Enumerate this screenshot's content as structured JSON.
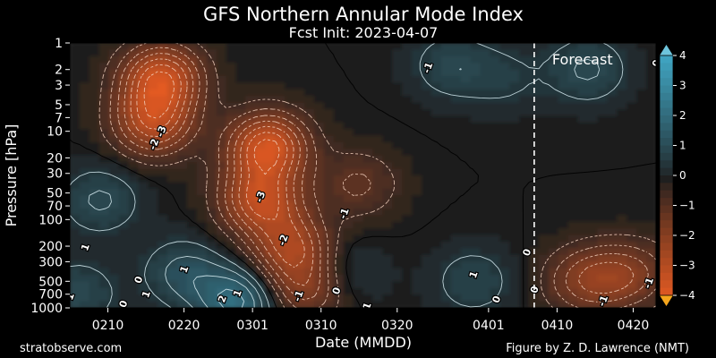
{
  "chart_data": {
    "type": "heatmap",
    "title": "GFS Northern Annular Mode Index",
    "subtitle": "Fcst Init: 2023-04-07",
    "xlabel": "Date (MMDD)",
    "ylabel": "Pressure [hPa]",
    "y_scale": "log",
    "y_inverted": true,
    "ylim": [
      1000,
      1
    ],
    "xlim": [
      "2023-02-05",
      "2023-04-23"
    ],
    "x_ticks": [
      {
        "date": "2023-02-10",
        "label": "0210"
      },
      {
        "date": "2023-02-20",
        "label": "0220"
      },
      {
        "date": "2023-03-01",
        "label": "0301"
      },
      {
        "date": "2023-03-10",
        "label": "0310"
      },
      {
        "date": "2023-03-20",
        "label": "0320"
      },
      {
        "date": "2023-04-01",
        "label": "0401"
      },
      {
        "date": "2023-04-10",
        "label": "0410"
      },
      {
        "date": "2023-04-20",
        "label": "0420"
      }
    ],
    "y_ticks": [
      1,
      2,
      3,
      5,
      7,
      10,
      20,
      30,
      50,
      70,
      100,
      200,
      300,
      500,
      700,
      1000
    ],
    "colorbar": {
      "min": -4,
      "max": 4,
      "ticks": [
        4,
        3,
        2,
        1,
        0,
        -1,
        -2,
        -3,
        -4
      ],
      "colors": {
        "neg": "#e35a22",
        "zero": "#1f1f1f",
        "pos": "#3fa2bf",
        "min_cap": "#f4a51c",
        "max_cap": "#6ec4dc"
      }
    },
    "forecast_start": "2023-04-07",
    "forecast_label": "Forecast",
    "features": [
      {
        "date": "2023-02-17",
        "hpa": 2.5,
        "value": -3.4
      },
      {
        "date": "2023-02-16",
        "hpa": 8,
        "value": -2.8
      },
      {
        "date": "2023-03-03",
        "hpa": 15,
        "value": -3.6
      },
      {
        "date": "2023-03-02",
        "hpa": 60,
        "value": -3.0
      },
      {
        "date": "2023-03-06",
        "hpa": 200,
        "value": -2.4
      },
      {
        "date": "2023-03-08",
        "hpa": 600,
        "value": -1.8
      },
      {
        "date": "2023-03-15",
        "hpa": 40,
        "value": -1.1
      },
      {
        "date": "2023-02-09",
        "hpa": 60,
        "value": 1.1
      },
      {
        "date": "2023-02-20",
        "hpa": 400,
        "value": 1.2
      },
      {
        "date": "2023-02-27",
        "hpa": 850,
        "value": 2.2
      },
      {
        "date": "2023-03-27",
        "hpa": 1.8,
        "value": 0.9
      },
      {
        "date": "2023-04-03",
        "hpa": 2.5,
        "value": 0.6
      },
      {
        "date": "2023-04-14",
        "hpa": 2.0,
        "value": 1.1
      },
      {
        "date": "2023-03-30",
        "hpa": 500,
        "value": 0.9
      },
      {
        "date": "2023-03-13",
        "hpa": 400,
        "value": 0.7
      },
      {
        "date": "2023-02-06",
        "hpa": 700,
        "value": 1.0
      },
      {
        "date": "2023-04-13",
        "hpa": 500,
        "value": -1.3
      },
      {
        "date": "2023-04-17",
        "hpa": 450,
        "value": -1.2
      },
      {
        "date": "2023-04-21",
        "hpa": 400,
        "value": -1.0
      }
    ],
    "contour_labels": [
      {
        "date": "2023-02-17",
        "hpa": 10,
        "text": "-3"
      },
      {
        "date": "2023-02-16",
        "hpa": 14,
        "text": "-2"
      },
      {
        "date": "2023-03-02",
        "hpa": 55,
        "text": "-3"
      },
      {
        "date": "2023-03-05",
        "hpa": 170,
        "text": "-2"
      },
      {
        "date": "2023-03-07",
        "hpa": 730,
        "text": "-1"
      },
      {
        "date": "2023-03-13",
        "hpa": 85,
        "text": "-1"
      },
      {
        "date": "2023-03-24",
        "hpa": 1.9,
        "text": "-1"
      },
      {
        "date": "2023-02-07",
        "hpa": 205,
        "text": "1"
      },
      {
        "date": "2023-02-14",
        "hpa": 480,
        "text": "0"
      },
      {
        "date": "2023-02-15",
        "hpa": 700,
        "text": "1"
      },
      {
        "date": "2023-02-20",
        "hpa": 365,
        "text": "1"
      },
      {
        "date": "2023-02-27",
        "hpa": 680,
        "text": "1"
      },
      {
        "date": "2023-02-25",
        "hpa": 790,
        "text": "2"
      },
      {
        "date": "2023-02-05",
        "hpa": 740,
        "text": "1"
      },
      {
        "date": "2023-02-12",
        "hpa": 900,
        "text": "0"
      },
      {
        "date": "2023-03-12",
        "hpa": 640,
        "text": "0"
      },
      {
        "date": "2023-03-16",
        "hpa": 950,
        "text": "1"
      },
      {
        "date": "2023-03-30",
        "hpa": 420,
        "text": "1"
      },
      {
        "date": "2023-04-02",
        "hpa": 800,
        "text": "0"
      },
      {
        "date": "2023-04-06",
        "hpa": 235,
        "text": "0"
      },
      {
        "date": "2023-04-07",
        "hpa": 620,
        "text": "0"
      },
      {
        "date": "2023-04-16",
        "hpa": 830,
        "text": "-1"
      },
      {
        "date": "2023-04-22",
        "hpa": 520,
        "text": "-1"
      },
      {
        "date": "2023-04-23",
        "hpa": 1.7,
        "text": "0"
      }
    ]
  },
  "footer": {
    "left": "stratobserve.com",
    "right": "Figure by Z. D. Lawrence (NMT)"
  }
}
